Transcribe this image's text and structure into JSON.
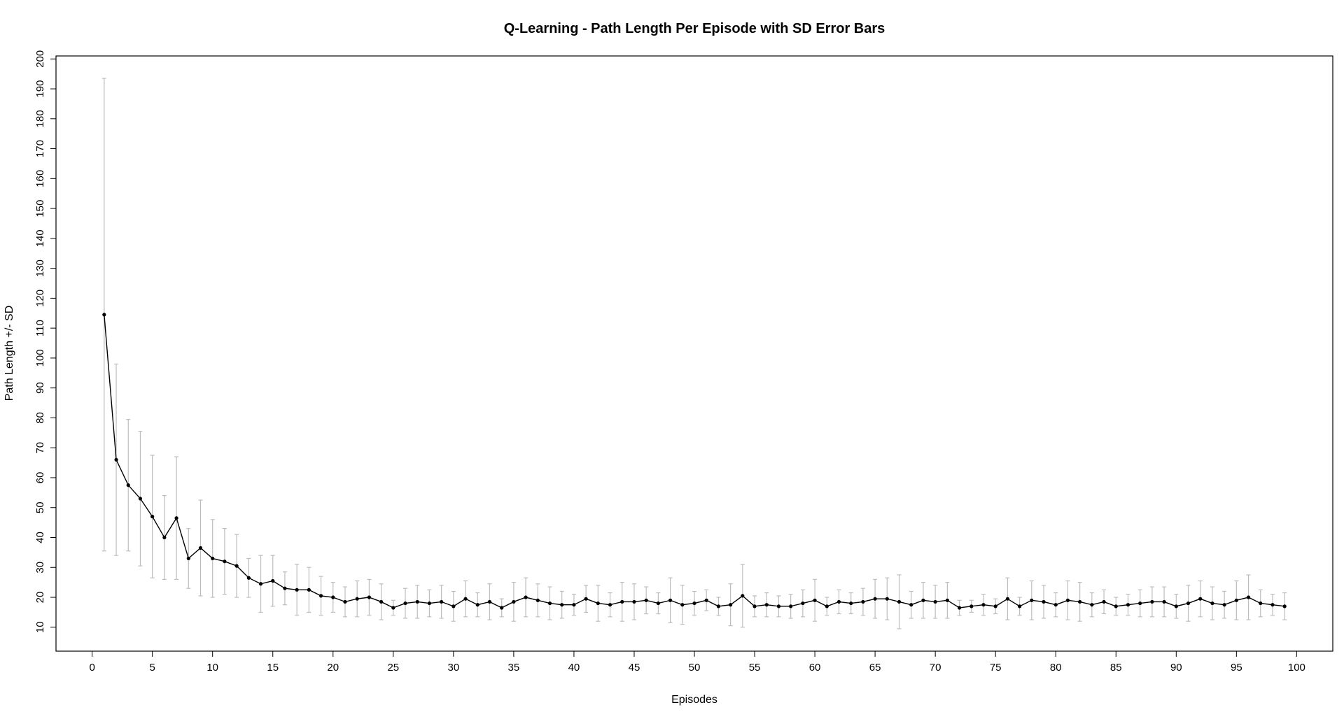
{
  "chart_data": {
    "type": "line",
    "title": "Q-Learning - Path Length Per Episode with SD Error Bars",
    "xlabel": "Episodes",
    "ylabel": "Path Length +/- SD",
    "xlim": [
      -3,
      103
    ],
    "ylim": [
      2,
      201
    ],
    "x_ticks": [
      0,
      5,
      10,
      15,
      20,
      25,
      30,
      35,
      40,
      45,
      50,
      55,
      60,
      65,
      70,
      75,
      80,
      85,
      90,
      95,
      100
    ],
    "y_ticks": [
      10,
      20,
      30,
      40,
      50,
      60,
      70,
      80,
      90,
      100,
      110,
      120,
      130,
      140,
      150,
      160,
      170,
      180,
      190,
      200
    ],
    "grid": false,
    "legend": "none",
    "line_color": "#000000",
    "errorbar_color": "#bdbdbd",
    "series": [
      {
        "x": [
          1,
          2,
          3,
          4,
          5,
          6,
          7,
          8,
          9,
          10,
          11,
          12,
          13,
          14,
          15,
          16,
          17,
          18,
          19,
          20,
          21,
          22,
          23,
          24,
          25,
          26,
          27,
          28,
          29,
          30,
          31,
          32,
          33,
          34,
          35,
          36,
          37,
          38,
          39,
          40,
          41,
          42,
          43,
          44,
          45,
          46,
          47,
          48,
          49,
          50,
          51,
          52,
          53,
          54,
          55,
          56,
          57,
          58,
          59,
          60,
          61,
          62,
          63,
          64,
          65,
          66,
          67,
          68,
          69,
          70,
          71,
          72,
          73,
          74,
          75,
          76,
          77,
          78,
          79,
          80,
          81,
          82,
          83,
          84,
          85,
          86,
          87,
          88,
          89,
          90,
          91,
          92,
          93,
          94,
          95,
          96,
          97,
          98,
          99
        ],
        "y": [
          114.5,
          66,
          57.5,
          53,
          47,
          40,
          46.5,
          33,
          36.5,
          33,
          32,
          30.5,
          26.5,
          24.5,
          25.5,
          23,
          22.5,
          22.5,
          20.5,
          20,
          18.5,
          19.5,
          20,
          18.5,
          16.5,
          18,
          18.5,
          18,
          18.5,
          17,
          19.5,
          17.5,
          18.5,
          16.5,
          18.5,
          20,
          19,
          18,
          17.5,
          17.5,
          19.5,
          18,
          17.5,
          18.5,
          18.5,
          19,
          18,
          19,
          17.5,
          18,
          19,
          17,
          17.5,
          20.5,
          17,
          17.5,
          17,
          17,
          18,
          19,
          17,
          18.5,
          18,
          18.5,
          19.5,
          19.5,
          18.5,
          17.5,
          19,
          18.5,
          19,
          16.5,
          17,
          17.5,
          17,
          19.5,
          17,
          19,
          18.5,
          17.5,
          19,
          18.5,
          17.5,
          18.5,
          17,
          17.5,
          18,
          18.5,
          18.5,
          17,
          18,
          19.5,
          18,
          17.5,
          19,
          20,
          18,
          17.5,
          17
        ],
        "sd": [
          79,
          32,
          22,
          22.5,
          20.5,
          14,
          20.5,
          10,
          16,
          13,
          11,
          10.5,
          6.5,
          9.5,
          8.5,
          5.5,
          8.5,
          7.5,
          6.5,
          5,
          5,
          6,
          6,
          6,
          2.5,
          5,
          5.5,
          4.5,
          5.5,
          5,
          6,
          4,
          6,
          3,
          6.5,
          6.5,
          5.5,
          5.5,
          4.5,
          3.5,
          4.5,
          6,
          4,
          6.5,
          6,
          4.5,
          3.5,
          7.5,
          6.5,
          4,
          3.5,
          3,
          7,
          10.5,
          3.5,
          4,
          3.5,
          4,
          4.5,
          7,
          3,
          4,
          3.5,
          4.5,
          6.5,
          7,
          9,
          4.5,
          6,
          5.5,
          6,
          2.5,
          2,
          3.5,
          2.5,
          7,
          3,
          6.5,
          5.5,
          4,
          6.5,
          6.5,
          4,
          4,
          3,
          3.5,
          4.5,
          5,
          5,
          4,
          6,
          6,
          5.5,
          4.5,
          6.5,
          7.5,
          4.5,
          3.5,
          4.5
        ]
      }
    ]
  }
}
